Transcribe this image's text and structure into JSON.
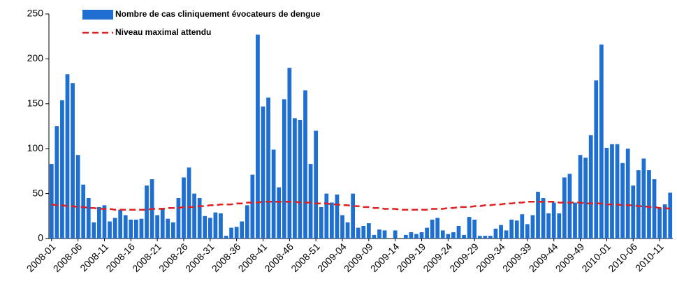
{
  "chart_data": {
    "type": "bar",
    "categories": [
      "2008-01",
      null,
      null,
      null,
      null,
      "2008-06",
      null,
      null,
      null,
      null,
      "2008-11",
      null,
      null,
      null,
      null,
      "2008-16",
      null,
      null,
      null,
      null,
      "2008-21",
      null,
      null,
      null,
      null,
      "2008-26",
      null,
      null,
      null,
      null,
      "2008-31",
      null,
      null,
      null,
      null,
      "2008-36",
      null,
      null,
      null,
      null,
      "2008-41",
      null,
      null,
      null,
      null,
      "2008-46",
      null,
      null,
      null,
      null,
      "2008-51",
      null,
      null,
      null,
      null,
      "2009-04",
      null,
      null,
      null,
      null,
      "2009-09",
      null,
      null,
      null,
      null,
      "2009-14",
      null,
      null,
      null,
      null,
      "2009-19",
      null,
      null,
      null,
      null,
      "2009-24",
      null,
      null,
      null,
      null,
      "2009-29",
      null,
      null,
      null,
      null,
      "2009-34",
      null,
      null,
      null,
      null,
      "2009-39",
      null,
      null,
      null,
      null,
      "2009-44",
      null,
      null,
      null,
      null,
      "2009-49",
      null,
      null,
      null,
      null,
      "2010-01",
      null,
      null,
      null,
      null,
      "2010-06",
      null,
      null,
      null,
      null,
      "2010-11",
      null,
      null
    ],
    "series": [
      {
        "name": "Nombre de cas cliniquement évocateurs de dengue",
        "type": "bar",
        "color": "#1f6fd1",
        "values": [
          83,
          125,
          154,
          183,
          173,
          93,
          60,
          45,
          18,
          35,
          37,
          19,
          23,
          32,
          26,
          21,
          21,
          22,
          59,
          66,
          26,
          34,
          22,
          18,
          45,
          68,
          79,
          50,
          45,
          25,
          23,
          29,
          28,
          3,
          12,
          13,
          19,
          37,
          71,
          227,
          147,
          157,
          99,
          57,
          155,
          190,
          134,
          132,
          165,
          83,
          120,
          35,
          50,
          40,
          49,
          26,
          18,
          50,
          12,
          14,
          17,
          4,
          10,
          9,
          0,
          9,
          0,
          4,
          7,
          5,
          7,
          12,
          21,
          23,
          9,
          5,
          7,
          14,
          4,
          24,
          21,
          3,
          3,
          3,
          11,
          15,
          9,
          21,
          20,
          27,
          16,
          26,
          52,
          45,
          28,
          40,
          28,
          68,
          72,
          40,
          93,
          90,
          115,
          176,
          216,
          101,
          105,
          105,
          84,
          100,
          59,
          76,
          89,
          76,
          66,
          34,
          38,
          51
        ]
      },
      {
        "name": "Niveau maximal attendu",
        "type": "line",
        "dashed": true,
        "color": "#e02020",
        "values": [
          38,
          37,
          37,
          36,
          36,
          35,
          35,
          34,
          34,
          33,
          33,
          33,
          32,
          32,
          32,
          32,
          32,
          32,
          32,
          33,
          33,
          33,
          34,
          34,
          34,
          35,
          35,
          35,
          36,
          36,
          37,
          37,
          38,
          38,
          38,
          39,
          39,
          40,
          40,
          40,
          41,
          41,
          41,
          41,
          41,
          41,
          41,
          40,
          40,
          40,
          39,
          39,
          39,
          38,
          38,
          37,
          37,
          36,
          36,
          35,
          35,
          34,
          34,
          33,
          33,
          33,
          32,
          32,
          32,
          32,
          32,
          32,
          33,
          33,
          33,
          34,
          34,
          35,
          35,
          35,
          36,
          36,
          37,
          37,
          38,
          38,
          39,
          39,
          40,
          40,
          41,
          41,
          41,
          41,
          41,
          41,
          40,
          40,
          40,
          40,
          40,
          39,
          39,
          39,
          39,
          38,
          38,
          38,
          37,
          37,
          37,
          36,
          36,
          35,
          35,
          34,
          34,
          33
        ]
      }
    ],
    "ylim": [
      0,
      250
    ],
    "yticks": [
      0,
      50,
      100,
      150,
      200,
      250
    ],
    "grid": false
  }
}
